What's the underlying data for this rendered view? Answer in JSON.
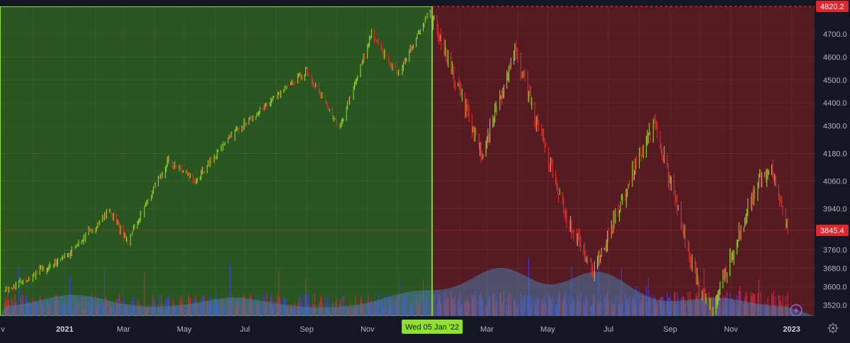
{
  "colors": {
    "background": "#131722",
    "green_zone": "#2a5420",
    "red_zone": "#551a22",
    "up_candle": "#9be02c",
    "down_candle": "#e8302a",
    "volume_blue": "#3b3ff0",
    "volume_red": "#d62a3a",
    "volume_ma_fill": "#4a7ca8",
    "marker_bg": "#8fe12c",
    "price_label_bg": "#e0262f",
    "crosshair": "#e0262f"
  },
  "x_axis": {
    "months": [
      {
        "label": "v",
        "bold": false
      },
      {
        "label": "2021",
        "bold": true
      },
      {
        "label": "Mar",
        "bold": false
      },
      {
        "label": "May",
        "bold": false
      },
      {
        "label": "Jul",
        "bold": false
      },
      {
        "label": "Sep",
        "bold": false
      },
      {
        "label": "Nov",
        "bold": false
      },
      {
        "label": "Mar",
        "bold": false
      },
      {
        "label": "May",
        "bold": false
      },
      {
        "label": "Jul",
        "bold": false
      },
      {
        "label": "Sep",
        "bold": false
      },
      {
        "label": "Nov",
        "bold": false
      },
      {
        "label": "2023",
        "bold": true
      }
    ],
    "marker_label": "Wed 05 Jan '22"
  },
  "y_axis": {
    "ticks": [
      "4700.0",
      "4600.0",
      "4500.0",
      "4400.0",
      "4300.0",
      "4180.0",
      "4060.0",
      "3940.0",
      "3760.0",
      "3680.0",
      "3600.0",
      "3520.0"
    ],
    "high_label": "4820.2",
    "current_label": "3845.4"
  },
  "chart_data": {
    "type": "candlestick",
    "symbol_period": "daily",
    "x_range": [
      "2020-11",
      "2023-01"
    ],
    "ylim": [
      3490,
      4830
    ],
    "regions": [
      {
        "from": "2020-11",
        "to": "2022-01-05",
        "color": "green"
      },
      {
        "from": "2022-01-05",
        "to": "2023-01",
        "color": "red"
      }
    ],
    "highlight_date": "2022-01-05",
    "all_time_high": 4820.2,
    "last_price": 3845.4,
    "approx_path": [
      {
        "date": "2020-11-01",
        "close": 3580
      },
      {
        "date": "2021-01-01",
        "close": 3730
      },
      {
        "date": "2021-02-15",
        "close": 3930
      },
      {
        "date": "2021-03-05",
        "close": 3800
      },
      {
        "date": "2021-04-15",
        "close": 4150
      },
      {
        "date": "2021-05-12",
        "close": 4060
      },
      {
        "date": "2021-06-15",
        "close": 4250
      },
      {
        "date": "2021-07-30",
        "close": 4420
      },
      {
        "date": "2021-09-01",
        "close": 4540
      },
      {
        "date": "2021-10-04",
        "close": 4290
      },
      {
        "date": "2021-11-05",
        "close": 4700
      },
      {
        "date": "2021-12-01",
        "close": 4520
      },
      {
        "date": "2022-01-03",
        "close": 4800
      },
      {
        "date": "2022-02-24",
        "close": 4170
      },
      {
        "date": "2022-03-29",
        "close": 4630
      },
      {
        "date": "2022-05-20",
        "close": 3900
      },
      {
        "date": "2022-06-16",
        "close": 3670
      },
      {
        "date": "2022-08-16",
        "close": 4320
      },
      {
        "date": "2022-09-30",
        "close": 3590
      },
      {
        "date": "2022-10-13",
        "close": 3500
      },
      {
        "date": "2022-11-30",
        "close": 4080
      },
      {
        "date": "2022-12-13",
        "close": 4100
      },
      {
        "date": "2022-12-28",
        "close": 3840
      }
    ]
  }
}
